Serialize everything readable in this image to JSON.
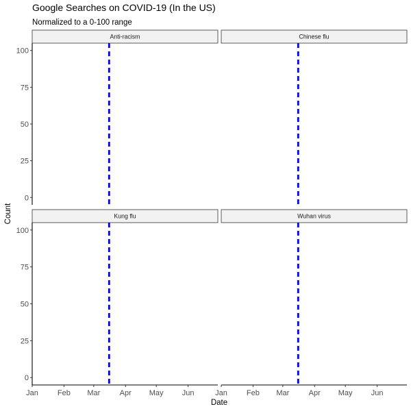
{
  "chart_data": {
    "type": "line",
    "title": "Google Searches on COVID-19 (In the US)",
    "subtitle": "Normalized to a 0-100 range",
    "xlabel": "Date",
    "ylabel": "Count",
    "facets": [
      "Anti-racism",
      "Chinese flu",
      "Kung flu",
      "Wuhan virus"
    ],
    "x_ticks": [
      "Jan",
      "Feb",
      "Mar",
      "Apr",
      "May",
      "Jun"
    ],
    "x_tick_dates": [
      "2020-01-01",
      "2020-02-01",
      "2020-03-01",
      "2020-04-01",
      "2020-05-01",
      "2020-06-01"
    ],
    "x_range": [
      "2020-01-01",
      "2020-06-30"
    ],
    "y_ticks": [
      0,
      25,
      50,
      75,
      100
    ],
    "ylim": [
      -5,
      105
    ],
    "reference_line": {
      "date": "2020-03-16",
      "color": "#0000ff",
      "style": "dashed"
    },
    "series": [],
    "grid": false,
    "colors": {
      "reference": "#0000ff",
      "strip_fill": "#f2f2f2"
    }
  }
}
